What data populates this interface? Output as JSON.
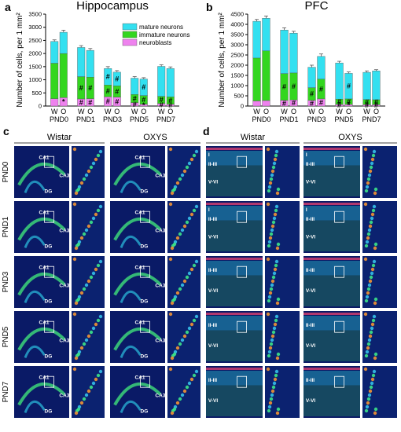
{
  "colors": {
    "mature": "#33e0f0",
    "immature": "#33d61f",
    "neuroblasts": "#ee82ee",
    "micro_bg": "#0a1a66"
  },
  "panels": {
    "a": "a",
    "b": "b",
    "c": "c",
    "d": "d"
  },
  "legend": [
    "mature neurons",
    "immature neurons",
    "neuroblasts"
  ],
  "chart_data": [
    {
      "type": "bar",
      "stacked": true,
      "title": "Hippocampus",
      "ylabel": "Number of cells, per 1 mm²",
      "ylim": [
        0,
        3500
      ],
      "yticks": [
        0,
        500,
        1000,
        1500,
        2000,
        2500,
        3000,
        3500
      ],
      "categories": [
        "PND0",
        "PND1",
        "PND3",
        "PND5",
        "PND7"
      ],
      "bar_labels": [
        "W",
        "O"
      ],
      "series": [
        {
          "name": "neuroblasts",
          "values": [
            [
              280,
              320
            ],
            [
              270,
              280
            ],
            [
              350,
              340
            ],
            [
              130,
              70
            ],
            [
              100,
              70
            ]
          ]
        },
        {
          "name": "immature neurons",
          "values": [
            [
              1350,
              1680
            ],
            [
              850,
              820
            ],
            [
              450,
              430
            ],
            [
              310,
              330
            ],
            [
              270,
              280
            ]
          ]
        },
        {
          "name": "mature neurons",
          "values": [
            [
              830,
              810
            ],
            [
              1110,
              1020
            ],
            [
              630,
              520
            ],
            [
              620,
              630
            ],
            [
              1140,
              1080
            ]
          ]
        }
      ],
      "errors": [
        [
          60,
          80
        ],
        [
          70,
          70
        ],
        [
          70,
          60
        ],
        [
          60,
          50
        ],
        [
          60,
          60
        ]
      ],
      "markers": [
        [
          {
            "W": [],
            "O": [
              "*"
            ]
          }
        ],
        [
          {
            "W": [
              "#",
              "#"
            ],
            "O": [
              "#",
              "#"
            ]
          }
        ],
        [
          {
            "W": [
              "#",
              "#",
              "#"
            ],
            "O": [
              "#",
              "#",
              "#"
            ]
          }
        ],
        [
          {
            "W": [
              "#",
              "#"
            ],
            "O": [
              "*",
              "#",
              "#"
            ]
          }
        ],
        [
          {
            "W": [
              "#",
              "#"
            ],
            "O": [
              "#",
              "#"
            ]
          }
        ]
      ]
    },
    {
      "type": "bar",
      "stacked": true,
      "title": "PFC",
      "ylabel": "Number of cells, per 1 mm²",
      "ylim": [
        0,
        4500
      ],
      "yticks": [
        0,
        500,
        1000,
        1500,
        2000,
        2500,
        3000,
        3500,
        4000,
        4500
      ],
      "categories": [
        "PND0",
        "PND1",
        "PND3",
        "PND5",
        "PND7"
      ],
      "bar_labels": [
        "W",
        "O"
      ],
      "series": [
        {
          "name": "neuroblasts",
          "values": [
            [
              250,
              270
            ],
            [
              280,
              300
            ],
            [
              280,
              350
            ],
            [
              80,
              80
            ],
            [
              70,
              70
            ]
          ]
        },
        {
          "name": "immature neurons",
          "values": [
            [
              2100,
              2430
            ],
            [
              1310,
              1320
            ],
            [
              620,
              970
            ],
            [
              260,
              270
            ],
            [
              250,
              240
            ]
          ]
        },
        {
          "name": "mature neurons",
          "values": [
            [
              1800,
              1600
            ],
            [
              2130,
              1950
            ],
            [
              1000,
              1110
            ],
            [
              1770,
              1250
            ],
            [
              1330,
              1410
            ]
          ]
        }
      ],
      "errors": [
        [
          90,
          110
        ],
        [
          110,
          90
        ],
        [
          100,
          120
        ],
        [
          80,
          70
        ],
        [
          70,
          60
        ]
      ],
      "markers": [
        [
          {
            "W": [],
            "O": []
          }
        ],
        [
          {
            "W": [
              "#",
              "#"
            ],
            "O": [
              "#",
              "#"
            ]
          }
        ],
        [
          {
            "W": [
              "#",
              "#"
            ],
            "O": [
              "#",
              "#"
            ]
          }
        ],
        [
          {
            "W": [
              "#",
              "#"
            ],
            "O": [
              "*",
              "#",
              "#"
            ]
          }
        ],
        [
          {
            "W": [
              "#",
              "#"
            ],
            "O": [
              "#",
              "#"
            ]
          }
        ]
      ]
    }
  ],
  "micro_c": {
    "groups": [
      "Wistar",
      "OXYS"
    ],
    "rows": [
      "PND0",
      "PND1",
      "PND3",
      "PND5",
      "PND7"
    ],
    "labels": [
      [
        "CA1",
        "DG",
        "CA3"
      ],
      [
        "CA1",
        "DG",
        "CA3"
      ],
      [
        "CA1",
        "DG",
        "CA3"
      ],
      [
        "CA1",
        "DG",
        "CA3"
      ],
      [
        "CA1",
        "DG",
        "CA3"
      ]
    ]
  },
  "micro_d": {
    "groups": [
      "Wistar",
      "OXYS"
    ],
    "rows": [
      "PND0",
      "PND1",
      "PND3",
      "PND5",
      "PND7"
    ],
    "labels": [
      [
        "I",
        "II-III",
        "V-VI"
      ],
      [
        "I",
        "II-III",
        "V-VI"
      ],
      [
        "II-III",
        "V-VI"
      ],
      [
        "II-III",
        "V-VI"
      ],
      [
        "II-III",
        "V-VI"
      ]
    ]
  }
}
